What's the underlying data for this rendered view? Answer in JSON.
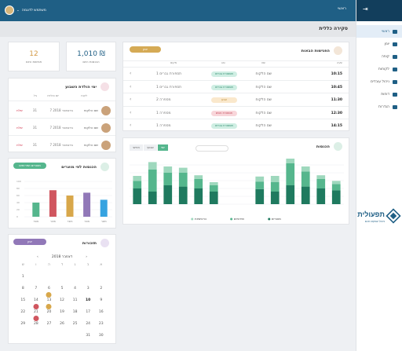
{
  "topbar": {
    "home": "ראשי",
    "user": "משתמש לדוגמה"
  },
  "sidebar": {
    "items": [
      {
        "label": "ראשי",
        "active": true
      },
      {
        "label": "יומן"
      },
      {
        "label": "קופה"
      },
      {
        "label": "לקוחות"
      },
      {
        "label": "ניהול עובדים"
      },
      {
        "label": "דוחות"
      },
      {
        "label": "הגדרות"
      }
    ]
  },
  "page_title": "סקירה כללית",
  "stats": [
    {
      "value": "1,010 ₪",
      "label": "הכנסות היום"
    },
    {
      "value": "12",
      "label": "פגישות היום"
    }
  ],
  "appointments": {
    "title": "הפגישות הבאות",
    "button": "יומן",
    "columns": [
      "שעה",
      "שם",
      "סוג",
      "מקום"
    ],
    "rows": [
      {
        "time": "10:15",
        "name": "שם הלקוח",
        "tag": "תספורת גברים",
        "tag_color": "#cfeee3",
        "tag_text": "#2d8a6c",
        "slot": "תספורת גברים 1"
      },
      {
        "time": "10:45",
        "name": "שם הלקוח",
        "tag": "תספורת גברים",
        "tag_color": "#cfeee3",
        "tag_text": "#2d8a6c",
        "slot": "תספורת גברים 1"
      },
      {
        "time": "11:30",
        "name": "שם הלקוח",
        "tag": "צבע",
        "tag_color": "#fae8cc",
        "tag_text": "#b5852d",
        "slot": "מספרה 2"
      },
      {
        "time": "12:30",
        "name": "שם הלקוח",
        "tag": "תספורת נשים",
        "tag_color": "#f8d6da",
        "tag_text": "#c3485a",
        "slot": "מספרה 1"
      },
      {
        "time": "14:15",
        "name": "שם הלקוח",
        "tag": "תספורת גברים",
        "tag_color": "#cfeee3",
        "tag_text": "#2d8a6c",
        "slot": "מספרה 1"
      }
    ]
  },
  "birthdays": {
    "title": "ימי הולדת השבוע",
    "columns": [
      "לקוח",
      "יום הולדת",
      "גיל"
    ],
    "rows": [
      {
        "name": "שם הלקוח",
        "date": "7 בדצמבר 2018",
        "age": "31",
        "action": "שלח"
      },
      {
        "name": "שם הלקוח",
        "date": "7 בדצמבר 2018",
        "age": "31",
        "action": "שלח"
      },
      {
        "name": "שם הלקוח",
        "date": "7 בדצמבר 2018",
        "age": "31",
        "action": "שלח"
      }
    ]
  },
  "income_chart": {
    "title": "הכנסות",
    "tabs": [
      "יומי",
      "שבועי",
      "חודשי"
    ],
    "legend": [
      "מוצרים",
      "שירותים",
      "כרטיסיות"
    ],
    "series": [
      {
        "values": [
          25,
          20,
          30,
          28,
          25,
          20,
          0,
          0,
          24,
          20,
          30,
          28,
          25,
          22
        ]
      },
      {
        "values": [
          12,
          35,
          20,
          22,
          15,
          10,
          0,
          0,
          12,
          15,
          35,
          24,
          15,
          10
        ]
      },
      {
        "values": [
          8,
          12,
          10,
          8,
          6,
          5,
          0,
          0,
          8,
          10,
          12,
          8,
          6,
          5
        ]
      }
    ],
    "colors": [
      "#1f7a5f",
      "#55b68d",
      "#9ed8bd"
    ]
  },
  "income_by_type": {
    "title": "הכנסות לפי מוצרים",
    "button": "מוצרים ושירותים",
    "categories": [
      "מוצר",
      "מוצר",
      "מוצר",
      "מוצר",
      "מוצר"
    ],
    "values": [
      40,
      75,
      60,
      68,
      48
    ],
    "colors": [
      "#55b68d",
      "#d0565f",
      "#d8a74a",
      "#9178b8",
      "#36a3e0"
    ]
  },
  "calendar": {
    "title": "תזכורות",
    "button": "יומן",
    "month": "דצמבר 2018",
    "weekdays": [
      "א",
      "ב",
      "ג",
      "ד",
      "ה",
      "ו",
      "ש"
    ]
  }
}
